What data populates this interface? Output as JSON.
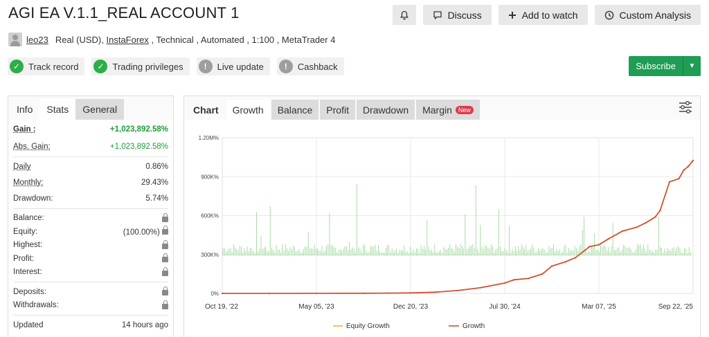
{
  "header": {
    "title": "AGI EA V.1.1_REAL ACCOUNT 1",
    "user": "leo23",
    "account_type": "Real (USD), ",
    "broker": "InstaForex",
    "tags": " , Technical , Automated , 1:100 , MetaTrader 4"
  },
  "toolbar": {
    "discuss": "Discuss",
    "watch": "Add to watch",
    "analysis": "Custom Analysis",
    "icons": {
      "bell": "bell-icon",
      "discuss": "chat-icon",
      "watch": "plus-icon",
      "analysis": "clock-icon"
    }
  },
  "badges": [
    {
      "label": "Track record",
      "state": "verified"
    },
    {
      "label": "Trading privileges",
      "state": "verified"
    },
    {
      "label": "Live update",
      "state": "unverified"
    },
    {
      "label": "Cashback",
      "state": "unverified"
    }
  ],
  "subscribe": {
    "label": "Subscribe"
  },
  "left_tabs": [
    "Info",
    "Stats",
    "General"
  ],
  "stats": {
    "gain_label": "Gain :",
    "gain": "+1,023,892.58%",
    "abs_gain_label": "Abs. Gain:",
    "abs_gain": "+1,023,892.58%",
    "daily_label": "Daily",
    "daily": "0.86%",
    "monthly_label": "Monthly:",
    "monthly": "29.43%",
    "drawdown_label": "Drawdown:",
    "drawdown": "5.74%",
    "balance_label": "Balance:",
    "equity_label": "Equity:",
    "equity": "(100.00%)",
    "highest_label": "Highest:",
    "profit_label": "Profit:",
    "interest_label": "Interest:",
    "deposits_label": "Deposits:",
    "withdrawals_label": "Withdrawals:",
    "updated_label": "Updated",
    "updated": "14 hours ago"
  },
  "chart_tabs": [
    "Chart",
    "Growth",
    "Balance",
    "Profit",
    "Drawdown",
    "Margin"
  ],
  "new_tag": "New",
  "chart_data": {
    "type": "line",
    "yticks": [
      "1.20M%",
      "900K%",
      "600K%",
      "300K%",
      "0%"
    ],
    "ylim": [
      0,
      1200000
    ],
    "xticks": [
      "Oct 19, '22",
      "May 05, '23",
      "Dec 20, '23",
      "Jul 30, '24",
      "Mar 07, '25",
      "Sep 22, '25"
    ],
    "series": [
      {
        "name": "Equity Growth",
        "color": "#f2b233"
      },
      {
        "name": "Growth",
        "color": "#d4502b",
        "points": [
          [
            0,
            0
          ],
          [
            0.1,
            200
          ],
          [
            0.2,
            500
          ],
          [
            0.3,
            1000
          ],
          [
            0.35,
            2000
          ],
          [
            0.4,
            4000
          ],
          [
            0.45,
            9000
          ],
          [
            0.5,
            22000
          ],
          [
            0.55,
            45000
          ],
          [
            0.6,
            80000
          ],
          [
            0.62,
            105000
          ],
          [
            0.65,
            115000
          ],
          [
            0.68,
            150000
          ],
          [
            0.7,
            210000
          ],
          [
            0.73,
            245000
          ],
          [
            0.75,
            275000
          ],
          [
            0.78,
            360000
          ],
          [
            0.8,
            375000
          ],
          [
            0.82,
            420000
          ],
          [
            0.85,
            480000
          ],
          [
            0.88,
            510000
          ],
          [
            0.9,
            545000
          ],
          [
            0.92,
            590000
          ],
          [
            0.93,
            640000
          ],
          [
            0.95,
            860000
          ],
          [
            0.97,
            885000
          ],
          [
            0.98,
            950000
          ],
          [
            0.99,
            980000
          ],
          [
            1.0,
            1023892
          ]
        ]
      }
    ],
    "grid": true,
    "legend": "bottom"
  }
}
